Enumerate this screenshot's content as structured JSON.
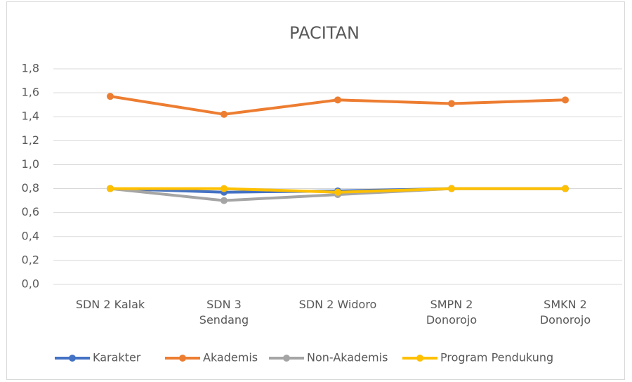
{
  "chart_data": {
    "type": "line",
    "title": "PACITAN",
    "categories": [
      "SDN 2 Kalak",
      "SDN 3 Sendang",
      "SDN 2 Widoro",
      "SMPN 2 Donorojo",
      "SMKN 2 Donorojo"
    ],
    "series": [
      {
        "name": "Karakter",
        "color": "#4472c4",
        "values": [
          0.8,
          0.77,
          0.78,
          0.8,
          0.8
        ]
      },
      {
        "name": "Akademis",
        "color": "#ed7d31",
        "values": [
          1.57,
          1.42,
          1.54,
          1.51,
          1.54
        ]
      },
      {
        "name": "Non-Akademis",
        "color": "#a5a5a5",
        "values": [
          0.8,
          0.7,
          0.75,
          0.8,
          0.8
        ]
      },
      {
        "name": "Program Pendukung",
        "color": "#ffc000",
        "values": [
          0.8,
          0.8,
          0.77,
          0.8,
          0.8
        ]
      }
    ],
    "ylim": [
      0,
      1.8
    ],
    "yticks": [
      {
        "value": 0,
        "label": "0,0"
      },
      {
        "value": 0.2,
        "label": "0,2"
      },
      {
        "value": 0.4,
        "label": "0,4"
      },
      {
        "value": 0.6,
        "label": "0,6"
      },
      {
        "value": 0.8,
        "label": "0,8"
      },
      {
        "value": 1.0,
        "label": "1,0"
      },
      {
        "value": 1.2,
        "label": "1,2"
      },
      {
        "value": 1.4,
        "label": "1,4"
      },
      {
        "value": 1.6,
        "label": "1,6"
      },
      {
        "value": 1.8,
        "label": "1,8"
      }
    ],
    "grid": true,
    "legend": "bottom"
  }
}
